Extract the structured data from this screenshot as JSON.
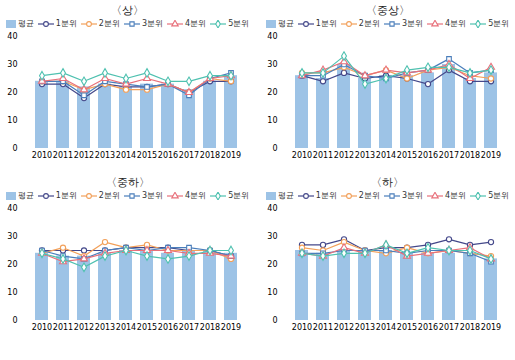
{
  "chart_data": [
    {
      "type": "bar",
      "title": "〈상〉",
      "categories": [
        "2010",
        "2011",
        "2012",
        "2013",
        "2014",
        "2015",
        "2016",
        "2017",
        "2018",
        "2019"
      ],
      "series": [
        {
          "name": "평균",
          "type": "bar",
          "color": "#9dc3e6",
          "values": [
            24,
            24,
            22,
            23,
            22,
            23,
            23,
            21,
            24,
            26
          ]
        },
        {
          "name": "1분위",
          "type": "line",
          "marker": "circle",
          "color": "#44488a",
          "values": [
            23,
            23,
            18,
            23,
            22,
            22,
            23,
            20,
            24,
            24
          ]
        },
        {
          "name": "2분위",
          "type": "line",
          "marker": "circle",
          "color": "#f2a05a",
          "values": [
            24,
            24,
            21,
            23,
            21,
            21,
            23,
            20,
            25,
            24
          ]
        },
        {
          "name": "3분위",
          "type": "line",
          "marker": "square",
          "color": "#4a7ebb",
          "values": [
            24,
            24,
            19,
            24,
            23,
            22,
            23,
            19,
            25,
            27
          ]
        },
        {
          "name": "4분위",
          "type": "line",
          "marker": "triangle",
          "color": "#e8707a",
          "values": [
            24,
            25,
            21,
            25,
            23,
            25,
            23,
            20,
            25,
            26
          ]
        },
        {
          "name": "5분위",
          "type": "line",
          "marker": "diamond",
          "color": "#4fc1b0",
          "values": [
            26,
            27,
            24,
            27,
            25,
            27,
            24,
            24,
            26,
            26
          ]
        }
      ],
      "ylim": [
        0,
        40
      ],
      "yticks": [
        0,
        10,
        20,
        30,
        40
      ],
      "grid": false,
      "legend": "top"
    },
    {
      "type": "bar",
      "title": "〈중상〉",
      "categories": [
        "2010",
        "2011",
        "2012",
        "2013",
        "2014",
        "2015",
        "2016",
        "2017",
        "2018",
        "2019"
      ],
      "series": [
        {
          "name": "평균",
          "type": "bar",
          "color": "#9dc3e6",
          "values": [
            26,
            25,
            30,
            25,
            26,
            26,
            27,
            30,
            25,
            27
          ]
        },
        {
          "name": "1분위",
          "type": "line",
          "marker": "circle",
          "color": "#44488a",
          "values": [
            26,
            24,
            27,
            25,
            26,
            25,
            23,
            28,
            24,
            24
          ]
        },
        {
          "name": "2분위",
          "type": "line",
          "marker": "circle",
          "color": "#f2a05a",
          "values": [
            27,
            27,
            29,
            26,
            28,
            25,
            28,
            29,
            26,
            25
          ]
        },
        {
          "name": "3분위",
          "type": "line",
          "marker": "square",
          "color": "#4a7ebb",
          "values": [
            26,
            26,
            30,
            26,
            25,
            27,
            28,
            32,
            27,
            28
          ]
        },
        {
          "name": "4분위",
          "type": "line",
          "marker": "triangle",
          "color": "#e8707a",
          "values": [
            26,
            28,
            31,
            26,
            28,
            27,
            28,
            30,
            25,
            29
          ]
        },
        {
          "name": "5분위",
          "type": "line",
          "marker": "diamond",
          "color": "#4fc1b0",
          "values": [
            27,
            27,
            33,
            23,
            25,
            28,
            29,
            29,
            27,
            28
          ]
        }
      ],
      "ylim": [
        0,
        40
      ],
      "yticks": [
        0,
        10,
        20,
        30,
        40
      ],
      "grid": false,
      "legend": "top"
    },
    {
      "type": "bar",
      "title": "〈중하〉",
      "categories": [
        "2010",
        "2011",
        "2012",
        "2013",
        "2014",
        "2015",
        "2016",
        "2017",
        "2018",
        "2019"
      ],
      "series": [
        {
          "name": "평균",
          "type": "bar",
          "color": "#9dc3e6",
          "values": [
            24,
            23,
            23,
            24,
            25,
            25,
            24,
            25,
            25,
            24
          ]
        },
        {
          "name": "1분위",
          "type": "line",
          "marker": "circle",
          "color": "#44488a",
          "values": [
            25,
            25,
            25,
            25,
            26,
            26,
            26,
            25,
            25,
            23
          ]
        },
        {
          "name": "2분위",
          "type": "line",
          "marker": "circle",
          "color": "#f2a05a",
          "values": [
            24,
            26,
            23,
            28,
            26,
            27,
            25,
            25,
            25,
            22
          ]
        },
        {
          "name": "3분위",
          "type": "line",
          "marker": "square",
          "color": "#4a7ebb",
          "values": [
            25,
            23,
            22,
            25,
            26,
            25,
            26,
            26,
            25,
            23
          ]
        },
        {
          "name": "4분위",
          "type": "line",
          "marker": "triangle",
          "color": "#e8707a",
          "values": [
            24,
            21,
            22,
            24,
            25,
            25,
            25,
            24,
            24,
            23
          ]
        },
        {
          "name": "5분위",
          "type": "line",
          "marker": "diamond",
          "color": "#4fc1b0",
          "values": [
            24,
            22,
            19,
            23,
            25,
            23,
            22,
            23,
            25,
            25
          ]
        }
      ],
      "ylim": [
        0,
        40
      ],
      "yticks": [
        0,
        10,
        20,
        30,
        40
      ],
      "grid": false,
      "legend": "top"
    },
    {
      "type": "bar",
      "title": "〈하〉",
      "categories": [
        "2010",
        "2011",
        "2012",
        "2013",
        "2014",
        "2015",
        "2016",
        "2017",
        "2018",
        "2019"
      ],
      "series": [
        {
          "name": "평균",
          "type": "bar",
          "color": "#9dc3e6",
          "values": [
            25,
            24,
            25,
            25,
            25,
            24,
            24,
            24,
            24,
            22
          ]
        },
        {
          "name": "1분위",
          "type": "line",
          "marker": "circle",
          "color": "#44488a",
          "values": [
            27,
            27,
            29,
            25,
            26,
            26,
            27,
            29,
            27,
            28
          ]
        },
        {
          "name": "2분위",
          "type": "line",
          "marker": "circle",
          "color": "#f2a05a",
          "values": [
            26,
            25,
            28,
            25,
            24,
            26,
            24,
            25,
            24,
            23
          ]
        },
        {
          "name": "3분위",
          "type": "line",
          "marker": "square",
          "color": "#4a7ebb",
          "values": [
            24,
            24,
            25,
            25,
            25,
            24,
            25,
            25,
            24,
            21
          ]
        },
        {
          "name": "4분위",
          "type": "line",
          "marker": "triangle",
          "color": "#e8707a",
          "values": [
            24,
            23,
            26,
            24,
            27,
            23,
            24,
            25,
            26,
            22
          ]
        },
        {
          "name": "5분위",
          "type": "line",
          "marker": "diamond",
          "color": "#4fc1b0",
          "values": [
            24,
            23,
            24,
            24,
            27,
            24,
            26,
            25,
            25,
            22
          ]
        }
      ],
      "ylim": [
        0,
        40
      ],
      "yticks": [
        0,
        10,
        20,
        30,
        40
      ],
      "grid": false,
      "legend": "top"
    }
  ]
}
